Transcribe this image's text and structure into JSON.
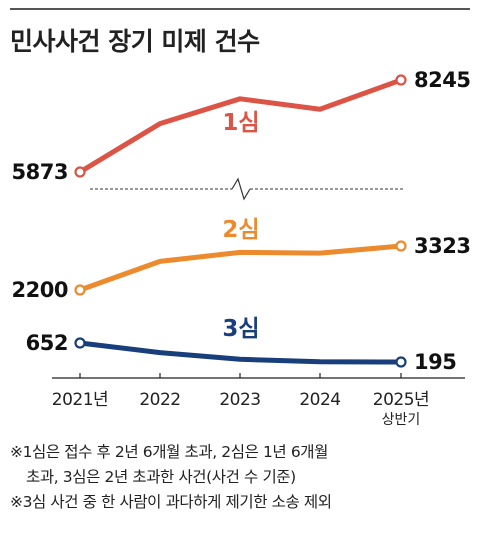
{
  "header": {
    "title": "민사사건 장기 미제 건수"
  },
  "chart_data": {
    "type": "line",
    "title": "민사사건 장기 미제 건수",
    "categories": [
      "2021년",
      "2022",
      "2023",
      "2024",
      "2025년"
    ],
    "category_sublabels": [
      "",
      "",
      "",
      "",
      "상반기"
    ],
    "series": [
      {
        "name": "1심",
        "values": [
          5873,
          7120,
          7760,
          7490,
          8245
        ],
        "color": "#dc5446"
      },
      {
        "name": "2심",
        "values": [
          2200,
          2930,
          3160,
          3140,
          3323
        ],
        "color": "#ec8a2e"
      },
      {
        "name": "3심",
        "values": [
          652,
          420,
          260,
          200,
          195
        ],
        "color": "#183e7b"
      }
    ],
    "labeled_values": [
      {
        "series": "1심",
        "start": "5873",
        "end": "8245"
      },
      {
        "series": "2심",
        "start": "2200",
        "end": "3323"
      },
      {
        "series": "3심",
        "start": "652",
        "end": "195"
      }
    ],
    "axis_break": true,
    "xlabel": "",
    "ylabel": "",
    "grid": false,
    "legend": "none"
  },
  "notes": [
    "※1심은 접수 후 2년 6개월 초과, 2심은 1년 6개월",
    "초과, 3심은 2년 초과한 사건(사건 수 기준)",
    "※3심 사건 중 한 사람이 과다하게 제기한 소송 제외"
  ]
}
